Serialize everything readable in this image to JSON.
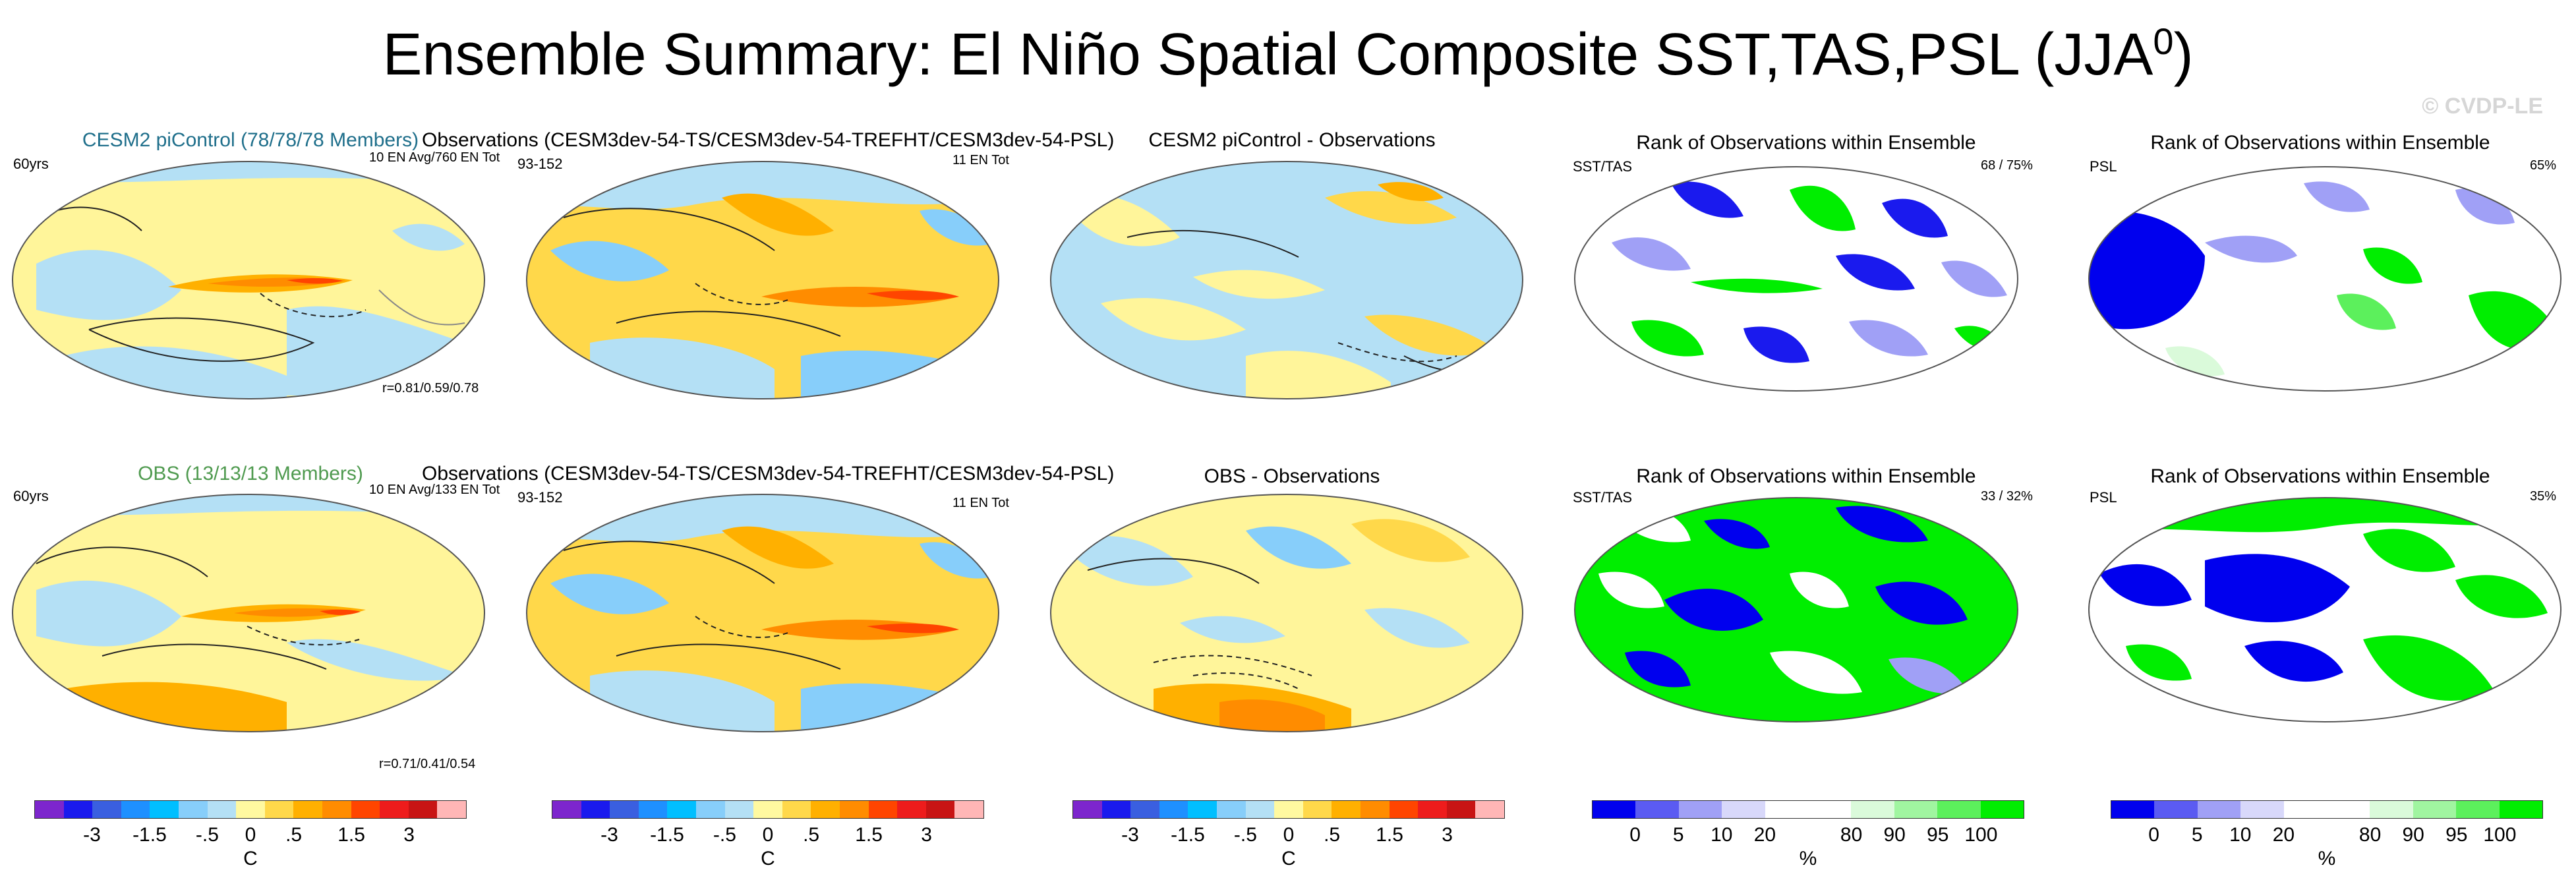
{
  "title_main": "Ensemble Summary: El Niño Spatial Composite SST,TAS,PSL (JJA",
  "title_sup": "0",
  "title_end": ")",
  "copyright": "© CVDP-LE",
  "colors": {
    "diverging": [
      "#7d26cd",
      "#1a1aee",
      "#3a5fe0",
      "#1e90ff",
      "#00bfff",
      "#87cefa",
      "#b4e0f5",
      "#fff9a0",
      "#ffd84a",
      "#ffb000",
      "#ff8c00",
      "#ff4500",
      "#ee1c1c",
      "#c81414",
      "#ffb6b6"
    ],
    "rank": [
      "#0000ee",
      "#5b5bf2",
      "#a0a0f6",
      "#d8d8fa",
      "#ffffff",
      "#ffffff",
      "#dafada",
      "#a0f5a0",
      "#5cf05c",
      "#00ee00"
    ]
  },
  "rows": [
    {
      "p1_title": "CESM2 piControl (78/78/78 Members)",
      "p1_years": "60yrs",
      "p1_info": "10 EN Avg/760 EN Tot",
      "p1_corr": "r=0.81/0.59/0.78",
      "p2_title": "Observations (CESM3dev-54-TS/CESM3dev-54-TREFHT/CESM3dev-54-PSL)",
      "p2_years": "93-152",
      "p2_info": "11 EN Tot",
      "p3_title": "CESM2 piControl - Observations",
      "p4_title": "Rank of Observations within Ensemble",
      "p4_label": "SST/TAS",
      "p4_pct": "68 /  75%",
      "p5_title": "Rank of Observations within Ensemble",
      "p5_label": "PSL",
      "p5_pct": "65%"
    },
    {
      "p1_title": "OBS (13/13/13 Members)",
      "p1_years": "60yrs",
      "p1_info": "10 EN Avg/133 EN Tot",
      "p1_corr": "r=0.71/0.41/0.54",
      "p2_title": "Observations (CESM3dev-54-TS/CESM3dev-54-TREFHT/CESM3dev-54-PSL)",
      "p2_years": "93-152",
      "p2_info": "11 EN Tot",
      "p3_title": "OBS - Observations",
      "p4_title": "Rank of Observations within Ensemble",
      "p4_label": "SST/TAS",
      "p4_pct": "33 /  32%",
      "p5_title": "Rank of Observations within Ensemble",
      "p5_label": "PSL",
      "p5_pct": "35%"
    }
  ],
  "colorbar_div": {
    "ticks": [
      "-3",
      "-1.5",
      "-.5",
      "0",
      ".5",
      "1.5",
      "3"
    ],
    "unit": "C"
  },
  "colorbar_rank": {
    "ticks": [
      "0",
      "5",
      "10",
      "20",
      "80",
      "90",
      "95",
      "100"
    ],
    "unit": "%"
  }
}
